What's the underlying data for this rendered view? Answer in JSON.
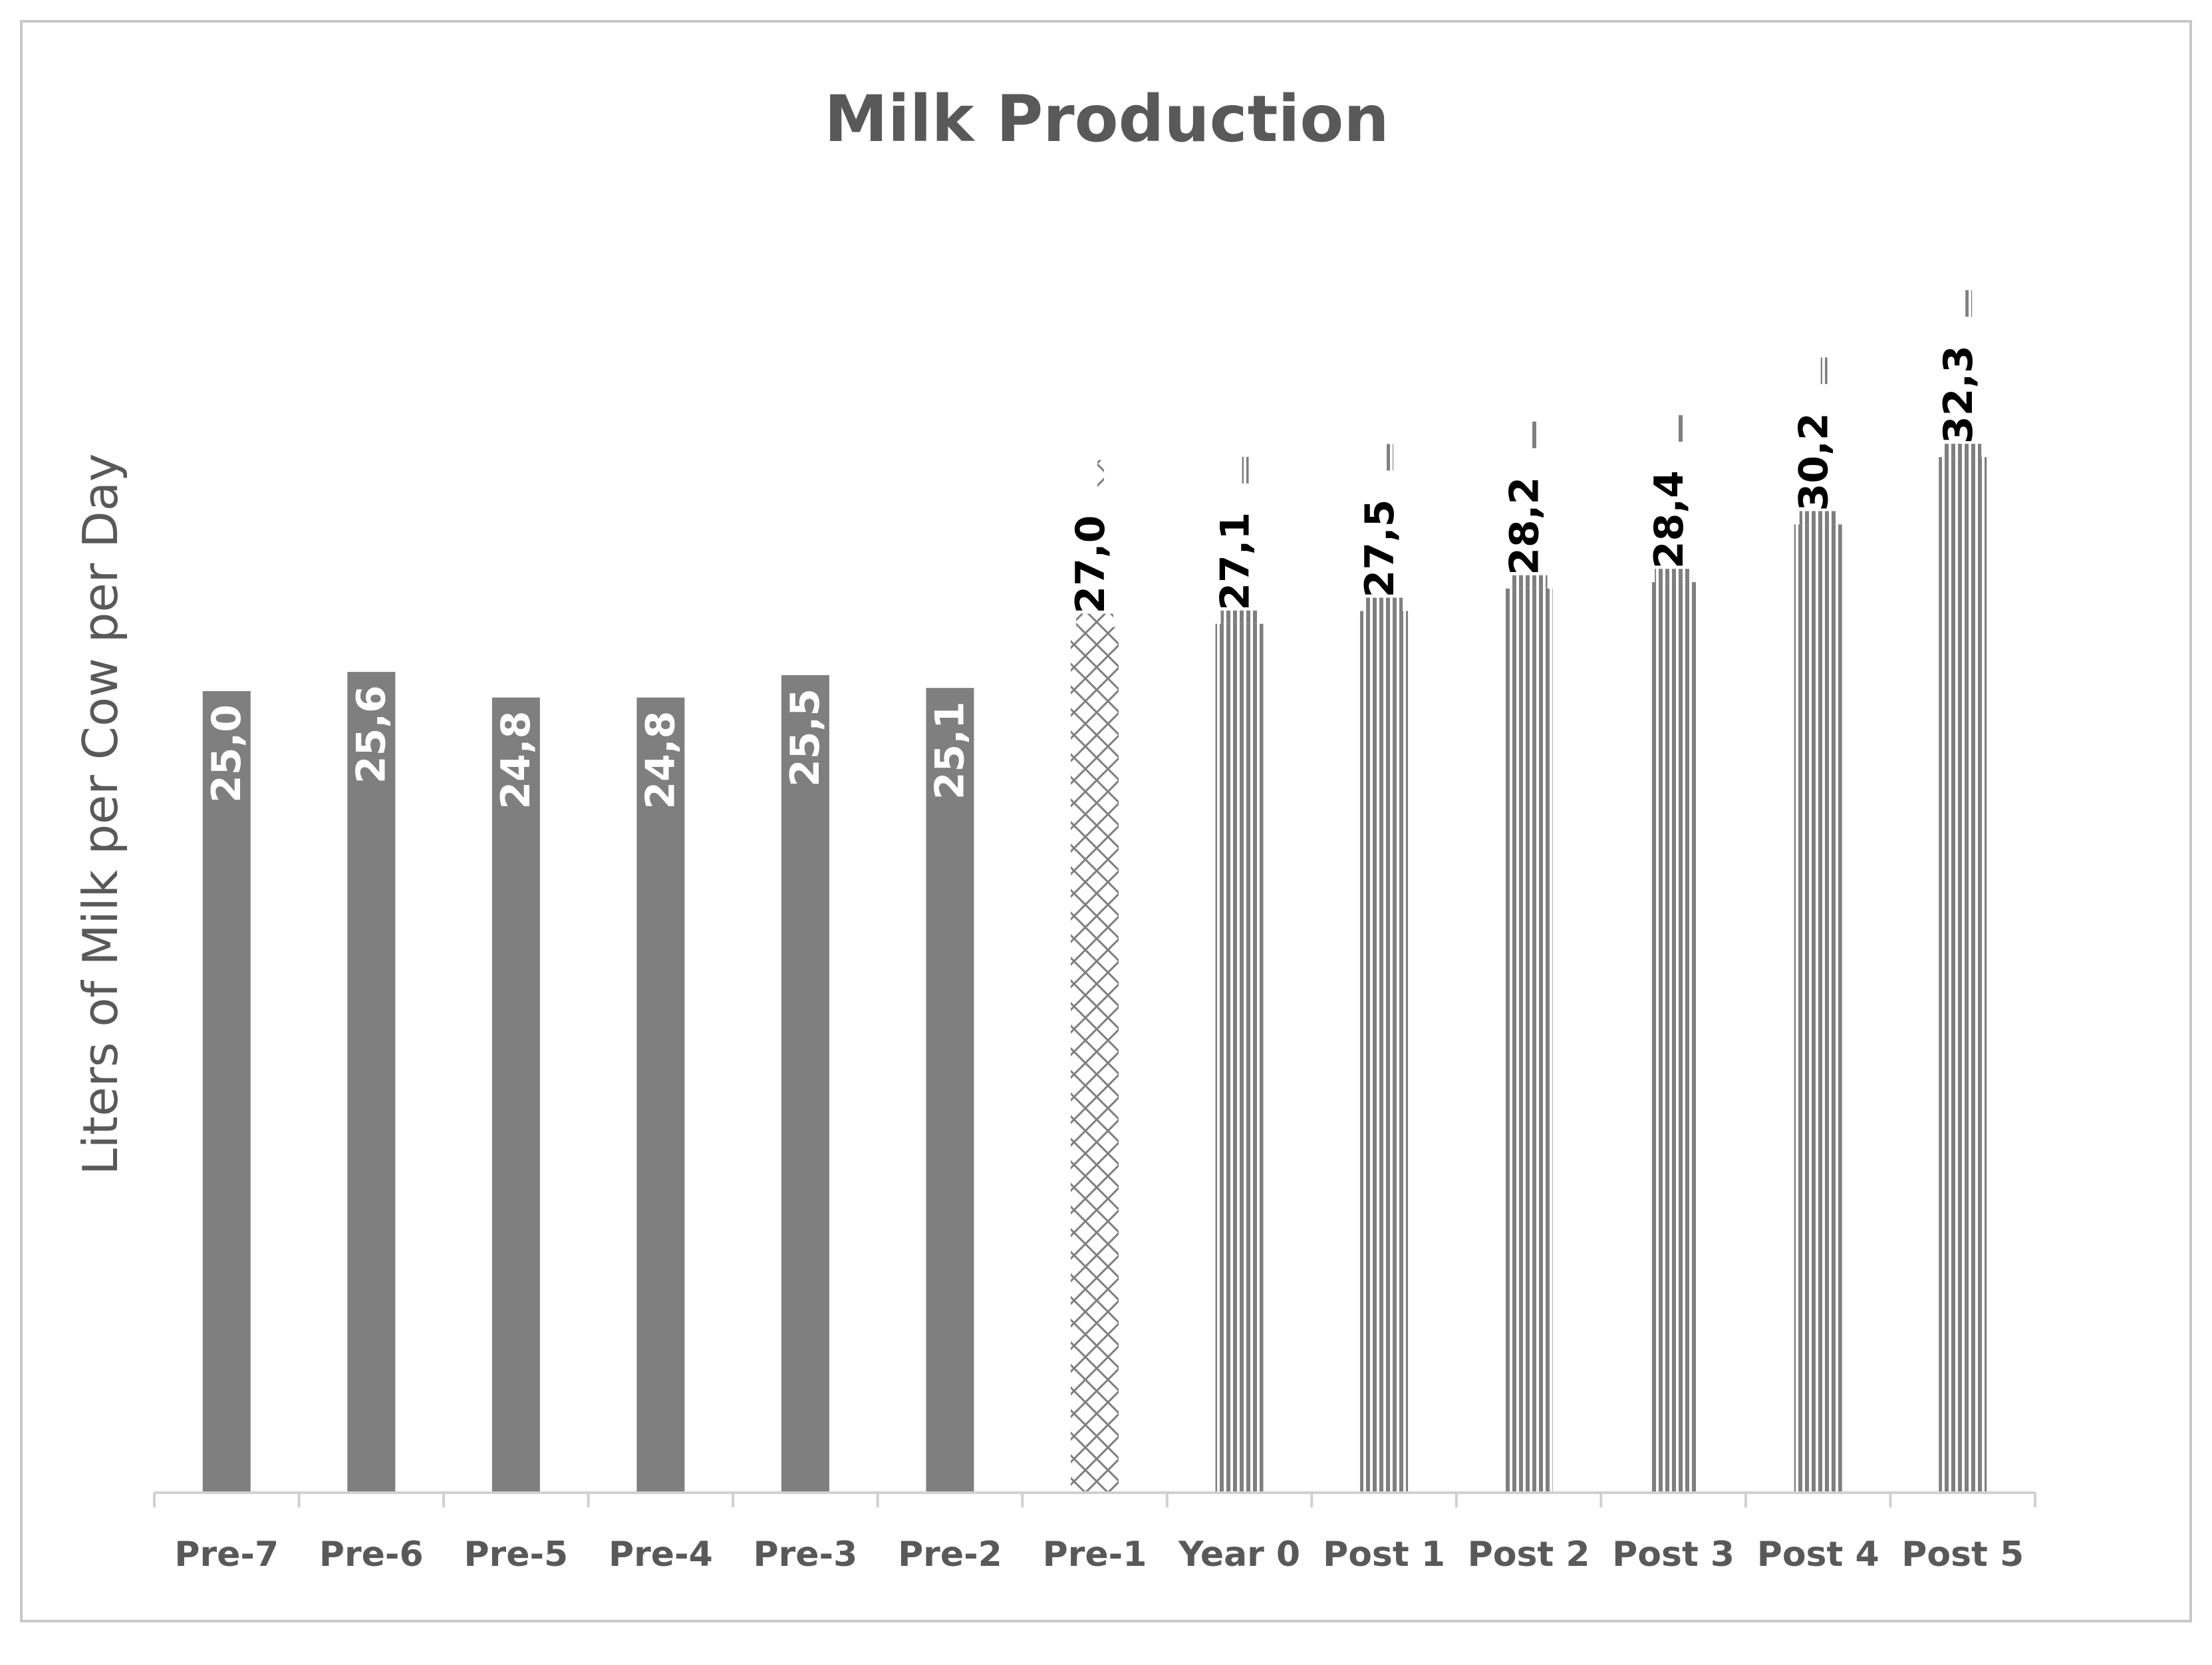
{
  "chart_data": {
    "type": "bar",
    "title": "Milk Production",
    "xlabel": "",
    "ylabel": "Liters of Milk per Cow per Day",
    "ylim": [
      0,
      33
    ],
    "grid": false,
    "legend": "none",
    "categories": [
      "Pre-7",
      "Pre-6",
      "Pre-5",
      "Pre-4",
      "Pre-3",
      "Pre-2",
      "Pre-1",
      "Year 0",
      "Post 1",
      "Post 2",
      "Post 3",
      "Post 4",
      "Post 5"
    ],
    "values": [
      25.0,
      25.6,
      24.8,
      24.8,
      25.5,
      25.1,
      27.0,
      27.1,
      27.5,
      28.2,
      28.4,
      30.2,
      32.3
    ],
    "value_labels": [
      "25,0",
      "25,6",
      "24,8",
      "24,8",
      "25,5",
      "25,1",
      "27,0",
      "27,1",
      "27,5",
      "28,2",
      "28,4",
      "30,2",
      "32,3"
    ],
    "bar_styles": [
      "solid",
      "solid",
      "solid",
      "solid",
      "solid",
      "solid",
      "crosshatch",
      "vertical-stripes",
      "vertical-stripes",
      "vertical-stripes",
      "vertical-stripes",
      "vertical-stripes",
      "vertical-stripes"
    ],
    "colors": {
      "solid_fill": "#7f7f7f",
      "stripe": "#7f7f7f",
      "crosshatch": "#7f7f7f",
      "axis": "#d0d0d0",
      "text": "#595959",
      "label_inside": "#ffffff",
      "label_outside": "#000000"
    }
  }
}
